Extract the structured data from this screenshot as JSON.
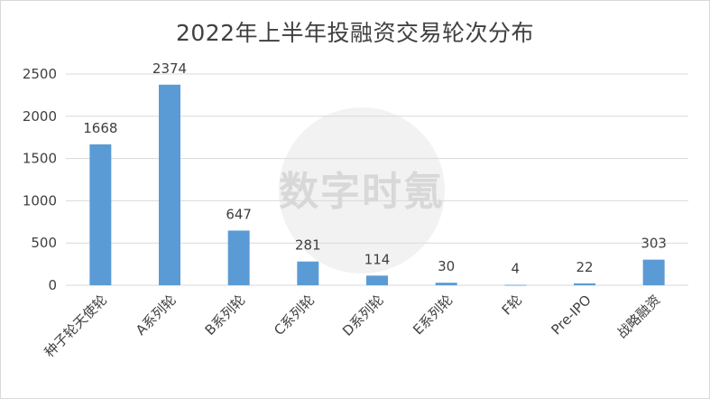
{
  "chart_data": {
    "type": "bar",
    "title": "2022年上半年投融资交易轮次分布",
    "categories": [
      "种子轮天使轮",
      "A系列轮",
      "B系列轮",
      "C系列轮",
      "D系列轮",
      "E系列轮",
      "F轮",
      "Pre-IPO",
      "战略融资"
    ],
    "values": [
      1668,
      2374,
      647,
      281,
      114,
      30,
      4,
      22,
      303
    ],
    "ylim": [
      0,
      2500
    ],
    "yticks": [
      0,
      500,
      1000,
      1500,
      2000,
      2500
    ],
    "grid": true,
    "legend": "none",
    "bar_color": "#5b9bd5",
    "xlabel": "",
    "ylabel": ""
  },
  "watermark": {
    "text": "数字时氪"
  }
}
